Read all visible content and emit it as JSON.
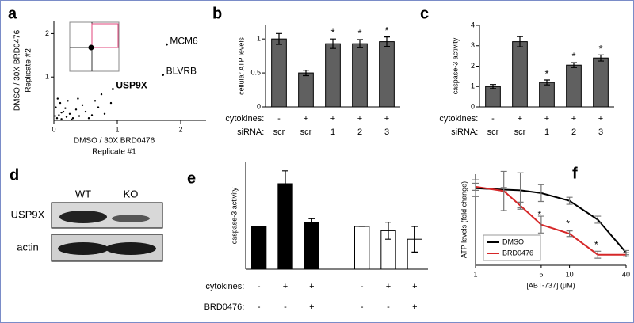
{
  "chart_data": [
    {
      "type": "scatter",
      "panel": "a",
      "xlabel": [
        "DMSO  / 30X BRD0476",
        "Replicate #1"
      ],
      "ylabel": [
        "DMSO / 30X BRD0476",
        "Replicate #2"
      ],
      "x": [
        0.05,
        0.08,
        0.12,
        0.15,
        0.2,
        0.03,
        0.25,
        0.3,
        0.1,
        0.35,
        0.4,
        0.18,
        0.5,
        0.45,
        0.6,
        0.06,
        0.22,
        0.7,
        0.55,
        0.28,
        0.8,
        0.38,
        0.65,
        0.12,
        0.02,
        0.9,
        0.75
      ],
      "y": [
        0.05,
        0.12,
        0.03,
        0.2,
        0.08,
        0.3,
        0.15,
        0.05,
        0.4,
        0.25,
        0.1,
        0.28,
        0.2,
        0.35,
        0.12,
        0.5,
        0.45,
        0.3,
        0.05,
        0.02,
        0.15,
        0.5,
        0.45,
        0.18,
        0.1,
        0.4,
        0.6
      ],
      "color": "#000000",
      "labeled": {
        "x": [
          1.78,
          1.72,
          0.93
        ],
        "y": [
          1.75,
          1.05,
          0.72
        ],
        "labels": [
          "MCM6",
          "BLVRB",
          "USP9X"
        ],
        "bold": [
          false,
          false,
          true
        ]
      },
      "xlim": [
        0,
        2.4
      ],
      "ylim": [
        0,
        2.3
      ],
      "xticks": [
        0,
        1,
        2
      ],
      "yticks": [
        1,
        2
      ]
    },
    {
      "type": "bar",
      "panel": "b",
      "ylabel": "cellular ATP levels",
      "values": [
        1.0,
        0.5,
        0.93,
        0.93,
        0.96
      ],
      "errors": [
        0.08,
        0.04,
        0.07,
        0.06,
        0.07
      ],
      "significance": [
        null,
        null,
        "*",
        "*",
        "*"
      ],
      "color": "#606060",
      "conditions": [
        {
          "name": "cytokines:",
          "levels": [
            "-",
            "+",
            "+",
            "+",
            "+"
          ]
        },
        {
          "name": "siRNA:",
          "levels": [
            "scr",
            "scr",
            "1",
            "2",
            "3"
          ]
        }
      ],
      "ylim": [
        0,
        1.2
      ],
      "yticks": [
        0,
        0.5,
        1
      ]
    },
    {
      "type": "bar",
      "panel": "c",
      "ylabel": "caspase-3 activity",
      "values": [
        1.0,
        3.2,
        1.2,
        2.05,
        2.4
      ],
      "errors": [
        0.1,
        0.25,
        0.12,
        0.12,
        0.15
      ],
      "significance": [
        null,
        null,
        "*",
        "*",
        "*"
      ],
      "color": "#606060",
      "conditions": [
        {
          "name": "cytokines:",
          "levels": [
            "-",
            "+",
            "+",
            "+",
            "+"
          ]
        },
        {
          "name": "siRNA:",
          "levels": [
            "scr",
            "scr",
            "1",
            "2",
            "3"
          ]
        }
      ],
      "ylim": [
        0,
        4
      ],
      "yticks": [
        0,
        1,
        2,
        3,
        4
      ]
    },
    {
      "type": "bar",
      "panel": "e",
      "ylabel": "caspase-3 activity",
      "values": [
        1.0,
        2.0,
        1.1,
        1.0,
        0.9,
        0.7
      ],
      "errors": [
        0,
        0.3,
        0.08,
        0,
        0.2,
        0.3
      ],
      "colors": [
        "#000000",
        "#000000",
        "#000000",
        "#ffffff",
        "#ffffff",
        "#ffffff"
      ],
      "conditions": [
        {
          "name": "cytokines:",
          "levels": [
            "-",
            "+",
            "+",
            "-",
            "+",
            "+"
          ]
        },
        {
          "name": "BRD0476:",
          "levels": [
            "-",
            "-",
            "+",
            "-",
            "-",
            "+"
          ]
        }
      ],
      "ylim": [
        0,
        2.5
      ]
    },
    {
      "type": "line",
      "panel": "f",
      "ylabel": "ATP levels (fold change)",
      "xlabel": "[ABT-737] (μM)",
      "x": [
        1,
        2,
        3,
        5,
        10,
        20,
        40
      ],
      "xscale": "log",
      "legend": "lower left",
      "series": [
        {
          "name": "DMSO",
          "color": "#000000",
          "values": [
            1.1,
            1.08,
            1.07,
            1.03,
            0.92,
            0.65,
            0.18
          ],
          "errors": [
            0.12,
            0.03,
            0.25,
            0.12,
            0.05,
            0.05,
            0.03
          ]
        },
        {
          "name": "BRD0476",
          "color": "#d62728",
          "values": [
            1.12,
            1.06,
            0.85,
            0.58,
            0.45,
            0.15,
            0.15
          ],
          "errors": [
            0.05,
            0.28,
            0.05,
            0.12,
            0.04,
            0.05,
            0.03
          ],
          "significance": [
            null,
            null,
            null,
            "*",
            "*",
            "*",
            null
          ]
        }
      ],
      "xlim": [
        1,
        40
      ],
      "ylim": [
        0,
        1.3
      ],
      "xticks": [
        1,
        5,
        10,
        40
      ]
    }
  ],
  "blot": {
    "panel": "d",
    "columns": [
      "WT",
      "KO"
    ],
    "rows": [
      "USP9X",
      "actin"
    ]
  }
}
